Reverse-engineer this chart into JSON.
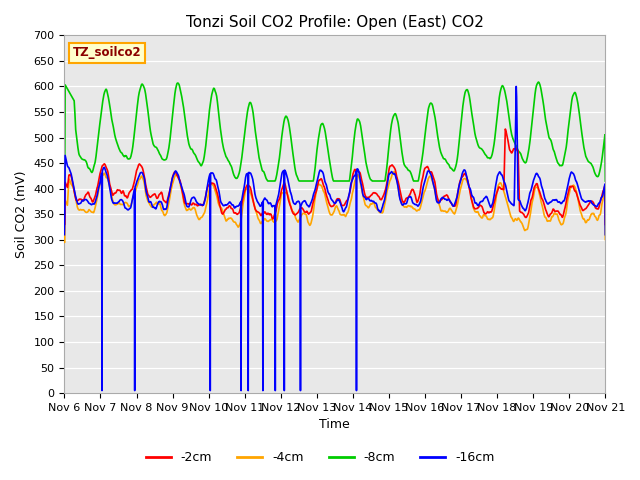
{
  "title": "Tonzi Soil CO2 Profile: Open (East) CO2",
  "xlabel": "Time",
  "ylabel": "Soil CO2 (mV)",
  "ylim": [
    0,
    700
  ],
  "yticks": [
    0,
    50,
    100,
    150,
    200,
    250,
    300,
    350,
    400,
    450,
    500,
    550,
    600,
    650,
    700
  ],
  "xtick_labels": [
    "Nov 6",
    "Nov 7",
    "Nov 8",
    "Nov 9",
    "Nov 10",
    "Nov 11",
    "Nov 12",
    "Nov 13",
    "Nov 14",
    "Nov 15",
    "Nov 16",
    "Nov 17",
    "Nov 18",
    "Nov 19",
    "Nov 20",
    "Nov 21"
  ],
  "line_colors": {
    "2cm": "#ff0000",
    "4cm": "#ffa500",
    "8cm": "#00cc00",
    "16cm": "#0000ff"
  },
  "legend_labels": [
    "-2cm",
    "-4cm",
    "-8cm",
    "-16cm"
  ],
  "legend_colors": [
    "#ff0000",
    "#ffa500",
    "#00cc00",
    "#0000ff"
  ],
  "annotation_text": "TZ_soilco2",
  "annotation_color": "#8b0000",
  "annotation_bg": "#ffffcc",
  "annotation_border": "#ffa500",
  "plot_bg_color": "#e8e8e8",
  "grid_color": "#ffffff",
  "linewidth": 1.2,
  "title_fontsize": 11,
  "label_fontsize": 9,
  "tick_fontsize": 8
}
